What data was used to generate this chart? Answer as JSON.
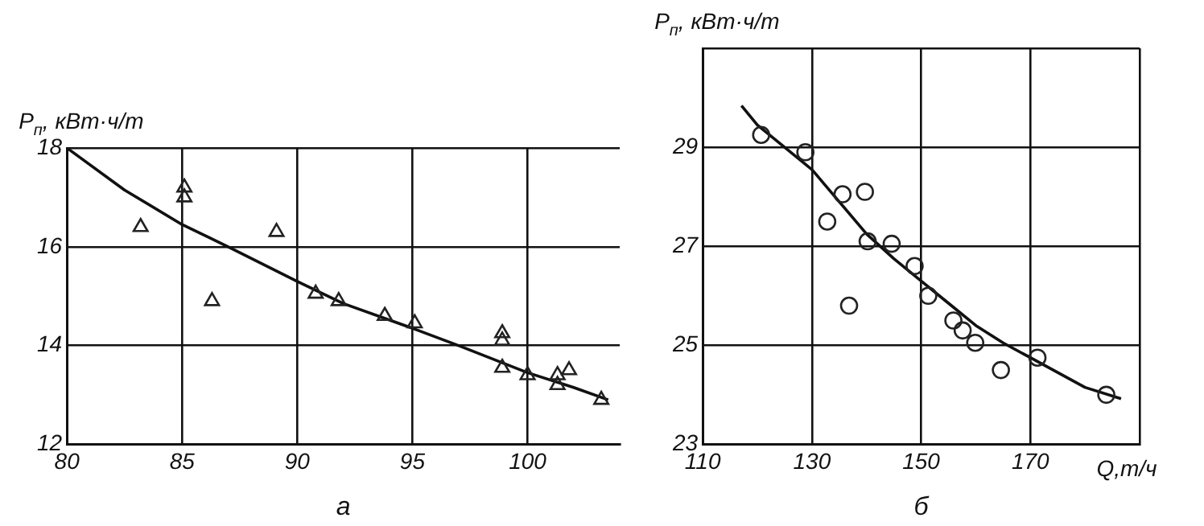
{
  "chart_data": [
    {
      "type": "scatter",
      "title": "а",
      "ylabel": "P$_{п}$, кВт·ч/т",
      "xlim": [
        80,
        104
      ],
      "xticks": [
        80,
        85,
        90,
        95,
        100
      ],
      "ylim": [
        12,
        18
      ],
      "yticks": [
        12,
        14,
        16,
        18
      ],
      "grid": true,
      "legend": false,
      "series": [
        {
          "marker": "triangle",
          "color": "#222222",
          "x": [
            83.2,
            85.1,
            85.1,
            86.3,
            89.1,
            90.8,
            91.8,
            93.8,
            95.1,
            98.9,
            98.9,
            98.9,
            100,
            101.3,
            101.3,
            101.8,
            103.2
          ],
          "values": [
            16.4,
            17.2,
            17.0,
            14.9,
            16.3,
            15.05,
            14.9,
            14.6,
            14.45,
            14.25,
            14.1,
            13.55,
            13.4,
            13.4,
            13.2,
            13.5,
            12.9
          ]
        },
        {
          "type": "line",
          "marker": "none",
          "color": "#111111",
          "x": [
            80,
            82.5,
            85,
            87,
            90,
            92,
            95,
            97,
            100,
            102,
            103.5
          ],
          "values": [
            18,
            17.15,
            16.45,
            16,
            15.3,
            14.85,
            14.35,
            14.0,
            13.45,
            13.15,
            12.9
          ]
        }
      ]
    },
    {
      "type": "scatter",
      "title": "б",
      "ylabel": "P$_{п}$, кВт·ч/т",
      "xlabel": "Q,т/ч",
      "xlim": [
        110,
        190
      ],
      "xticks": [
        110,
        130,
        150,
        170,
        {
          "value": 190,
          "label": null
        }
      ],
      "ylim": [
        23,
        31
      ],
      "yticks": [
        23,
        25,
        27,
        29,
        {
          "value": 31,
          "label": null
        }
      ],
      "grid": true,
      "legend": false,
      "series": [
        {
          "marker": "circle",
          "color": "#222222",
          "x": [
            120.7,
            128.8,
            132.8,
            135.6,
            136.8,
            139.7,
            140.2,
            144.6,
            148.8,
            151.3,
            155.9,
            157.6,
            159.9,
            164.6,
            171.3,
            183.9
          ],
          "values": [
            29.25,
            28.9,
            27.5,
            28.05,
            25.8,
            28.1,
            27.1,
            27.05,
            26.6,
            26.0,
            25.5,
            25.3,
            25.05,
            24.5,
            24.75,
            24.0
          ]
        },
        {
          "type": "line",
          "marker": "none",
          "color": "#111111",
          "x": [
            117.1,
            120,
            125,
            130,
            135,
            140,
            145,
            150,
            155,
            160,
            165,
            170,
            175,
            180,
            186.6
          ],
          "values": [
            29.84,
            29.45,
            29.0,
            28.55,
            27.9,
            27.25,
            26.75,
            26.3,
            25.85,
            25.4,
            25.05,
            24.75,
            24.45,
            24.15,
            23.92
          ]
        }
      ]
    }
  ]
}
